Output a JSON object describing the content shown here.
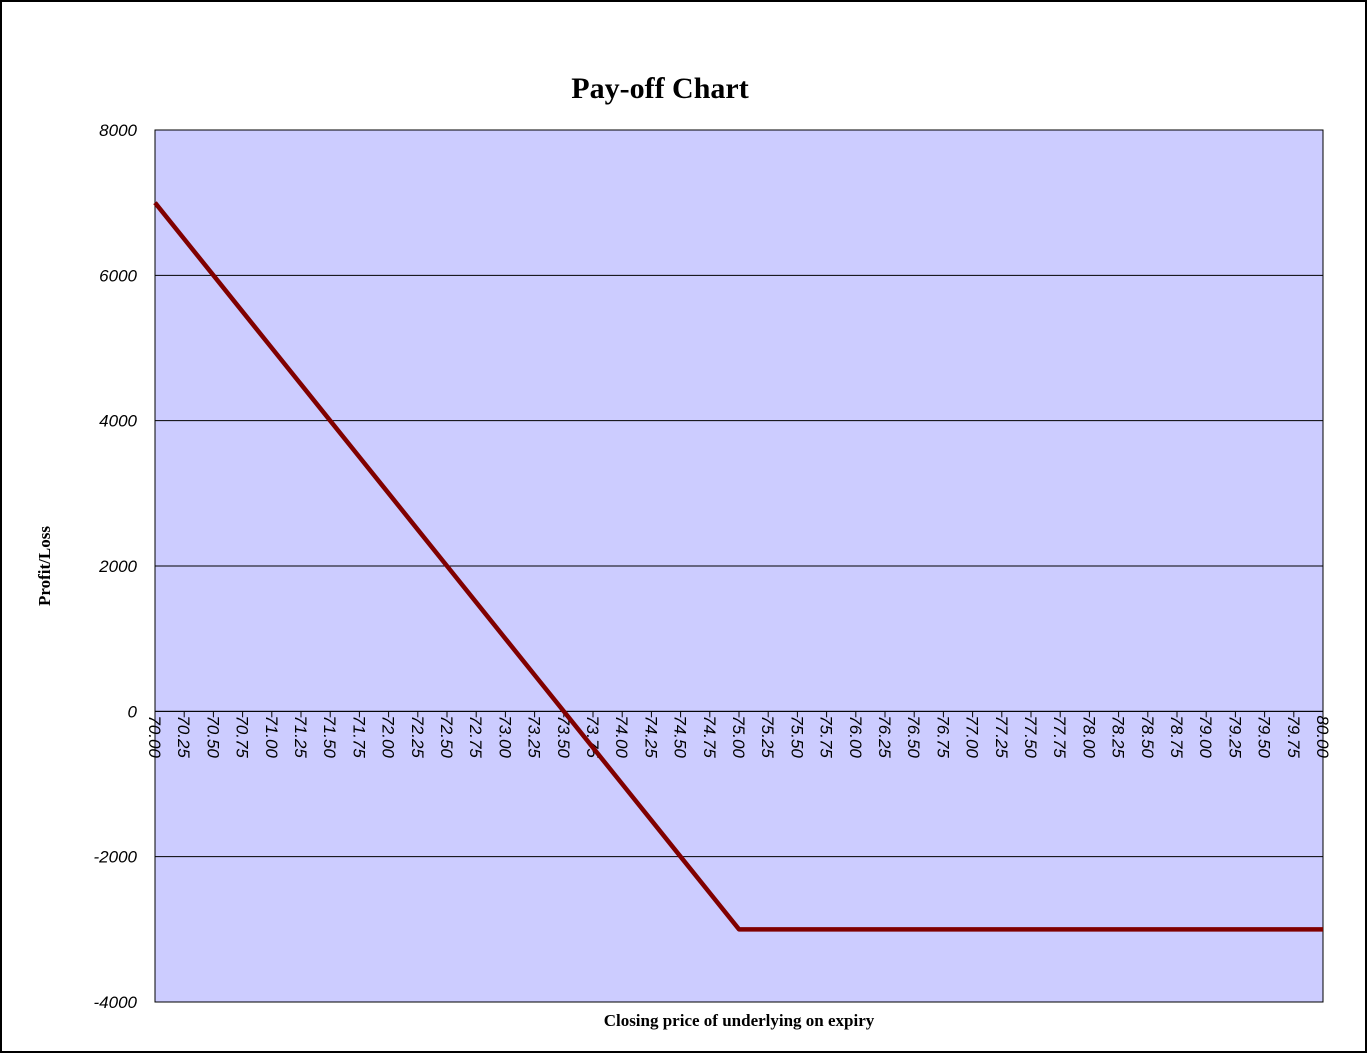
{
  "chart_data": {
    "type": "line",
    "title": "Pay-off Chart",
    "x_label": "Closing price of underlying on expiry",
    "y_label": "Profit/Loss",
    "categories": [
      "70.00",
      "70.25",
      "70.50",
      "70.75",
      "71.00",
      "71.25",
      "71.50",
      "71.75",
      "72.00",
      "72.25",
      "72.50",
      "72.75",
      "73.00",
      "73.25",
      "73.50",
      "73.75",
      "74.00",
      "74.25",
      "74.50",
      "74.75",
      "75.00",
      "75.25",
      "75.50",
      "75.75",
      "76.00",
      "76.25",
      "76.50",
      "76.75",
      "77.00",
      "77.25",
      "77.50",
      "77.75",
      "78.00",
      "78.25",
      "78.50",
      "78.75",
      "79.00",
      "79.25",
      "79.50",
      "79.75",
      "80.00"
    ],
    "values": [
      7000,
      6500,
      6000,
      5500,
      5000,
      4500,
      4000,
      3500,
      3000,
      2500,
      2000,
      1500,
      1000,
      500,
      0,
      -500,
      -1000,
      -1500,
      -2000,
      -2500,
      -3000,
      -3000,
      -3000,
      -3000,
      -3000,
      -3000,
      -3000,
      -3000,
      -3000,
      -3000,
      -3000,
      -3000,
      -3000,
      -3000,
      -3000,
      -3000,
      -3000,
      -3000,
      -3000,
      -3000,
      -3000
    ],
    "color": "#800000",
    "plot_background": "#ccccff",
    "ylim": [
      -4000,
      8000
    ],
    "yticks": [
      -4000,
      -2000,
      0,
      2000,
      4000,
      6000,
      8000
    ],
    "grid": true
  }
}
